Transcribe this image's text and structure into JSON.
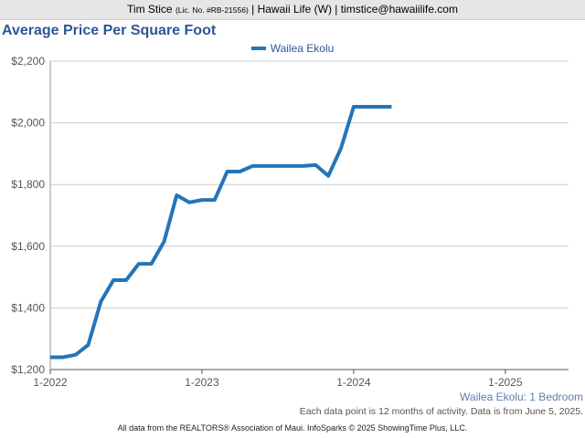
{
  "header": {
    "name": "Tim Stice",
    "license": "(Lic. No. #RB-21556)",
    "rest": "| Hawaii Life (W) | timstice@hawaiilife.com"
  },
  "chart_data": {
    "type": "line",
    "title": "Average Price Per Square Foot",
    "subtitle": "Wailea Ekolu: 1 Bedroom",
    "note": "Each data point is 12 months of activity. Data is from June 5, 2025.",
    "footer": "All data from the REALTORS® Association of Maui. InfoSparks © 2025 ShowingTime Plus, LLC.",
    "ylim": [
      1200,
      2200
    ],
    "yticks": [
      1200,
      1400,
      1600,
      1800,
      2000,
      2200
    ],
    "ytick_labels": [
      "$1,200",
      "$1,400",
      "$1,600",
      "$1,800",
      "$2,000",
      "$2,200"
    ],
    "xlim": [
      "2022-01",
      "2025-06"
    ],
    "xticks": [
      "2022-01",
      "2023-01",
      "2024-01",
      "2025-01"
    ],
    "xtick_labels": [
      "1-2022",
      "1-2023",
      "1-2024",
      "1-2025"
    ],
    "grid": true,
    "legend_position": "top-center",
    "series": [
      {
        "name": "Wailea Ekolu",
        "color": "#2475b8",
        "x": [
          "2022-01",
          "2022-02",
          "2022-03",
          "2022-04",
          "2022-05",
          "2022-06",
          "2022-07",
          "2022-08",
          "2022-09",
          "2022-10",
          "2022-11",
          "2022-12",
          "2023-01",
          "2023-02",
          "2023-03",
          "2023-04",
          "2023-05",
          "2023-06",
          "2023-07",
          "2023-08",
          "2023-09",
          "2023-10",
          "2023-11",
          "2023-12",
          "2024-01",
          "2024-02",
          "2024-03",
          "2024-04"
        ],
        "values": [
          1240,
          1240,
          1248,
          1280,
          1420,
          1490,
          1490,
          1543,
          1543,
          1615,
          1765,
          1742,
          1750,
          1750,
          1842,
          1842,
          1860,
          1860,
          1860,
          1860,
          1860,
          1863,
          1828,
          1918,
          2052,
          2052,
          2052,
          2052
        ]
      }
    ]
  }
}
